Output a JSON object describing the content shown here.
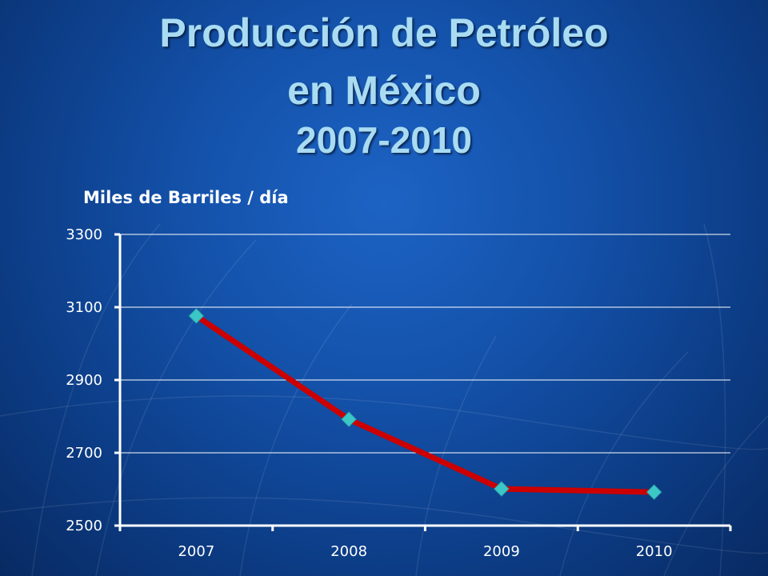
{
  "slide": {
    "title_line_1": "Producción de Petróleo",
    "title_line_2": "en México",
    "title_years": "2007-2010"
  },
  "colors": {
    "background": "#1452ab",
    "title": "#a9dcf3",
    "line": "#cc0000",
    "marker": "#3cc7c7",
    "axis": "#ffffff"
  },
  "chart_data": {
    "type": "line",
    "title": "",
    "ylabel": "Miles de Barriles / día",
    "xlabel": "",
    "categories": [
      "2007",
      "2008",
      "2009",
      "2010"
    ],
    "series": [
      {
        "values": [
          3076,
          2792,
          2601,
          2592
        ]
      }
    ],
    "ylim": [
      2500,
      3300
    ],
    "yticks": [
      2500,
      2700,
      2900,
      3100,
      3300
    ],
    "grid": true,
    "legend": "none"
  }
}
